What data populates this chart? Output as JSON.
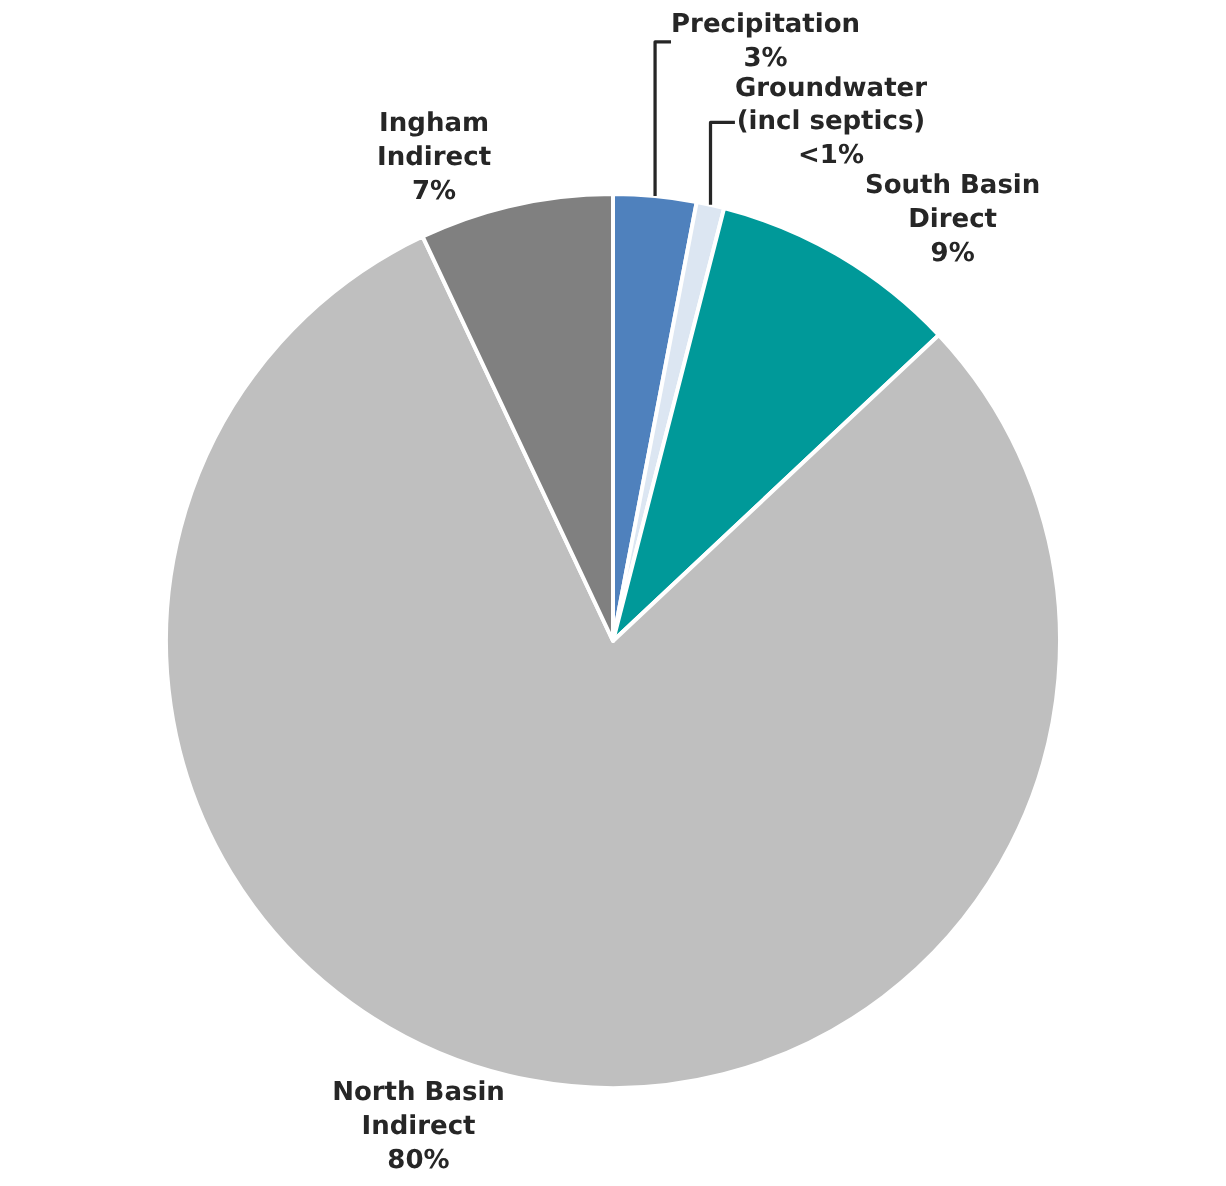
{
  "chart_data": {
    "type": "pie",
    "categories": [
      "Precipitation",
      "Groundwater\n(incl septics)",
      "South Basin\nDirect",
      "North Basin\nIndirect",
      "Ingham\nIndirect"
    ],
    "values": [
      3,
      1,
      9,
      80,
      7
    ],
    "value_labels": [
      "3%",
      "<1%",
      "9%",
      "80%",
      "7%"
    ],
    "colors": [
      "#4f81bd",
      "#dce6f2",
      "#009999",
      "#bfbfbf",
      "#808080"
    ],
    "legend": false
  }
}
